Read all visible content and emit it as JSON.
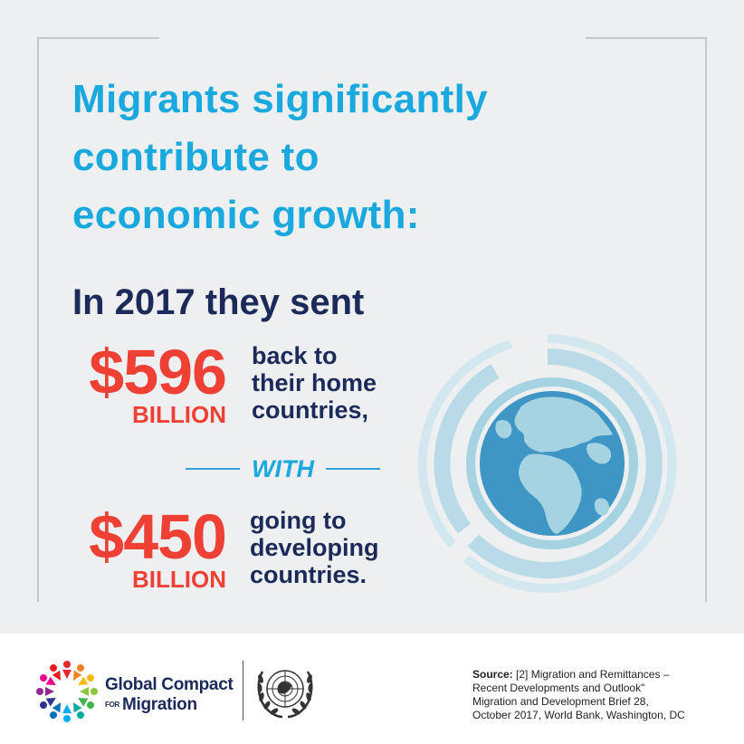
{
  "headline": {
    "line1": "Migrants significantly",
    "line2": "contribute to",
    "line3": "economic growth:"
  },
  "subhead": "In 2017 they sent",
  "stat1": {
    "amount": "$596",
    "unit": "BILLION",
    "desc_line1": "back to",
    "desc_line2": "their home",
    "desc_line3": "countries,"
  },
  "connector": "WITH",
  "stat2": {
    "amount": "$450",
    "unit": "BILLION",
    "desc_line1": "going to",
    "desc_line2": "developing",
    "desc_line3": "countries."
  },
  "footer": {
    "logo_line1": "Global Compact",
    "logo_for": "FOR",
    "logo_line2": "Migration",
    "source_label": "Source:",
    "source_line1": "[2] Migration and Remittances –",
    "source_line2": "Recent Developments and Outlook\"",
    "source_line3": "Migration and Development Brief 28,",
    "source_line4": "October 2017, World Bank, Washington, DC"
  },
  "colors": {
    "headline": "#19a9de",
    "navy": "#1c2a5a",
    "red": "#ef4035",
    "globe_ocean": "#3d96c4",
    "globe_land": "#a5d3e2",
    "ring": "#cfe5ee"
  },
  "icons": {
    "globe": "globe-icon",
    "gcm_logo": "global-compact-logo",
    "un_logo": "un-emblem-logo"
  }
}
